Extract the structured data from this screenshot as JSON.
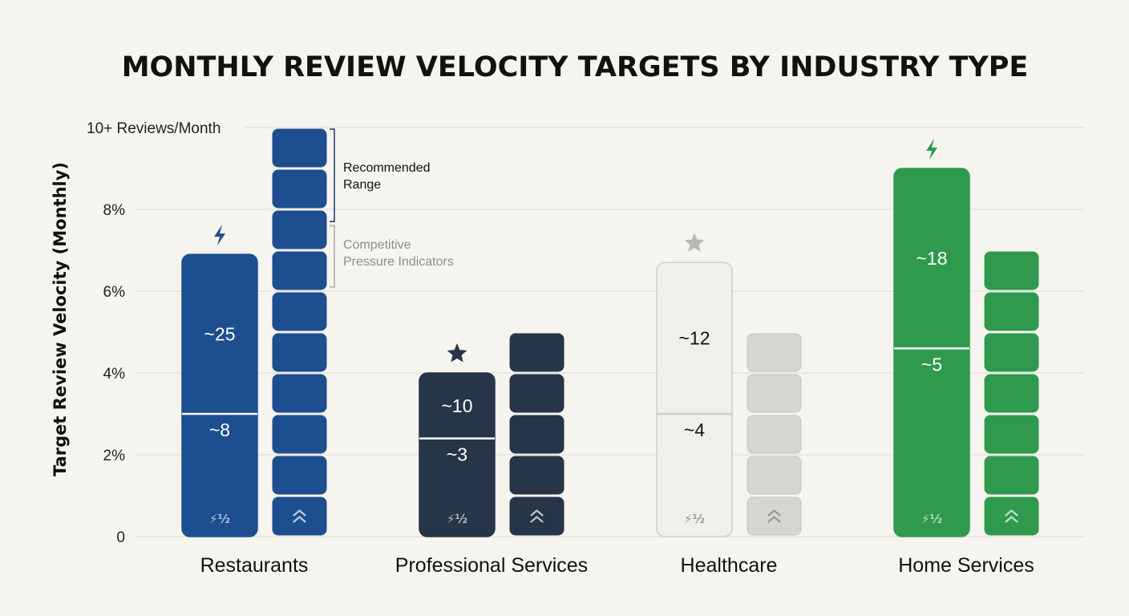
{
  "chart_data": {
    "type": "bar",
    "title": "MONTHLY REVIEW VELOCITY TARGETS BY INDUSTRY TYPE",
    "ylabel": "Target Review Velocity (Monthly)",
    "ylim": [
      0,
      10
    ],
    "y_ticks": [
      {
        "value": 0,
        "label": "0"
      },
      {
        "value": 2,
        "label": "2%"
      },
      {
        "value": 4,
        "label": "4%"
      },
      {
        "value": 6,
        "label": "6%"
      },
      {
        "value": 8,
        "label": "8%"
      },
      {
        "value": 10,
        "label": "10+ Reviews/Month"
      }
    ],
    "grid": true,
    "categories": [
      "Restaurants",
      "Professional Services",
      "Healthcare",
      "Home Services"
    ],
    "stacked_bars": [
      {
        "category": "Restaurants",
        "lower": 3,
        "total": 6.9,
        "lower_label": "~8",
        "upper_label": "~25",
        "color": "#1d4e8f",
        "top_icon": "lightning-icon"
      },
      {
        "category": "Professional Services",
        "lower": 2.4,
        "total": 4.0,
        "lower_label": "~3",
        "upper_label": "~10",
        "color": "#263547",
        "top_icon": "star-icon"
      },
      {
        "category": "Healthcare",
        "lower": 3,
        "total": 6.7,
        "lower_label": "~4",
        "upper_label": "~12",
        "color": "#f0efea",
        "top_icon": "star-icon"
      },
      {
        "category": "Home Services",
        "lower": 4.6,
        "total": 9.0,
        "lower_label": "~5",
        "upper_label": "~18",
        "color": "#2f9a4e",
        "top_icon": "lightning-icon"
      }
    ],
    "block_columns": [
      {
        "category": "Restaurants",
        "blocks": 10,
        "value": 10,
        "color": "#1d4e8f"
      },
      {
        "category": "Professional Services",
        "blocks": 5,
        "value": 5,
        "color": "#263547"
      },
      {
        "category": "Healthcare",
        "blocks": 5,
        "value": 5,
        "color": "#d6d5d0"
      },
      {
        "category": "Home Services",
        "blocks": 7,
        "value": 7,
        "color": "#2f9a4e"
      }
    ],
    "annotations": [
      {
        "text": [
          "Recommended",
          "Range"
        ],
        "style": "dark"
      },
      {
        "text": [
          "Competitive",
          "Pressure Indicators"
        ],
        "style": "muted"
      }
    ],
    "bar_base_glyph": "⚡½",
    "block_base_icon": "double-chevron-up-icon"
  }
}
